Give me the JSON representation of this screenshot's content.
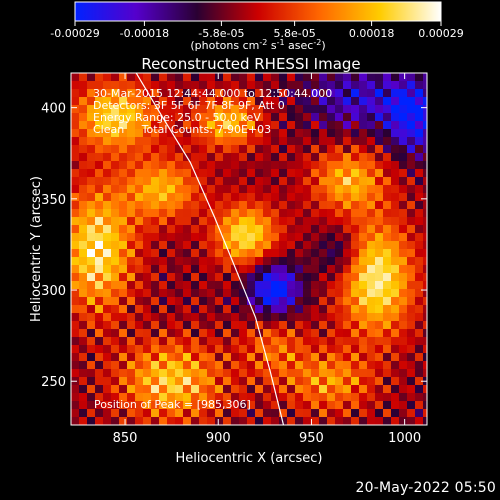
{
  "chart_data": {
    "type": "heatmap",
    "title": "Reconstructed RHESSI Image",
    "xlabel": "Heliocentric X (arcsec)",
    "ylabel": "Heliocentric Y (arcsec)",
    "xlim": [
      821,
      1012
    ],
    "ylim": [
      226,
      419
    ],
    "x_ticks": [
      850,
      900,
      950,
      1000
    ],
    "y_ticks": [
      250,
      300,
      350,
      400
    ],
    "colorbar": {
      "label": "(photons cm-2 s-1 asec-2)",
      "label_parts": {
        "prefix": "(photons cm",
        "sup1": "-2",
        "mid1": " s",
        "sup2": "-1",
        "mid2": " asec",
        "sup3": "-2",
        "suffix": ")"
      },
      "range": [
        -0.00029,
        0.00029
      ],
      "ticks": [
        -0.00029,
        -0.00018,
        -5.8e-05,
        5.8e-05,
        0.00018,
        0.00029
      ],
      "tick_labels": [
        "-0.00029",
        "-0.00018",
        "-5.8e-05",
        "5.8e-05",
        "0.00018",
        "0.00029"
      ],
      "colormap": [
        "#0022ff",
        "#5500cc",
        "#2a0033",
        "#cc0000",
        "#ff6600",
        "#ffcc00",
        "#ffffff"
      ]
    },
    "annotations": [
      "30-Mar-2015 12:44:44.000 to 12:50:44.000",
      "Detectors: 3F 5F 6F 7F 8F 9F, Att 0",
      "Energy Range: 25.0 - 50.0 keV",
      "Clean     Total Counts: 7.90E+03"
    ],
    "peak_label": "Position of Peak = [985,306]",
    "peak": [
      985,
      306
    ],
    "limb_curve": {
      "x": [
        856,
        870,
        885,
        898,
        910,
        920,
        928,
        935
      ],
      "y": [
        419,
        395,
        370,
        340,
        310,
        285,
        255,
        226
      ]
    },
    "blobs": [
      {
        "x": 985,
        "y": 306,
        "sx": 14,
        "sy": 22,
        "amp": 1.0
      },
      {
        "x": 970,
        "y": 360,
        "sx": 14,
        "sy": 12,
        "amp": 0.72
      },
      {
        "x": 960,
        "y": 250,
        "sx": 16,
        "sy": 12,
        "amp": 0.6
      },
      {
        "x": 835,
        "y": 322,
        "sx": 14,
        "sy": 24,
        "amp": 0.95
      },
      {
        "x": 845,
        "y": 395,
        "sx": 16,
        "sy": 13,
        "amp": 0.88
      },
      {
        "x": 870,
        "y": 355,
        "sx": 14,
        "sy": 12,
        "amp": 0.72
      },
      {
        "x": 875,
        "y": 250,
        "sx": 20,
        "sy": 15,
        "amp": 0.82
      },
      {
        "x": 915,
        "y": 330,
        "sx": 12,
        "sy": 12,
        "amp": 0.92
      },
      {
        "x": 905,
        "y": 392,
        "sx": 12,
        "sy": 10,
        "amp": 0.78
      },
      {
        "x": 930,
        "y": 270,
        "sx": 12,
        "sy": 14,
        "amp": 0.45
      },
      {
        "x": 930,
        "y": 300,
        "sx": 10,
        "sy": 11,
        "amp": -0.95
      },
      {
        "x": 975,
        "y": 405,
        "sx": 20,
        "sy": 12,
        "amp": -0.55
      },
      {
        "x": 1005,
        "y": 395,
        "sx": 10,
        "sy": 14,
        "amp": -0.85
      },
      {
        "x": 965,
        "y": 320,
        "sx": 8,
        "sy": 10,
        "amp": -0.45
      }
    ],
    "grid": false,
    "legend": "none"
  },
  "footer": {
    "date": "20-May-2022 05:50"
  }
}
